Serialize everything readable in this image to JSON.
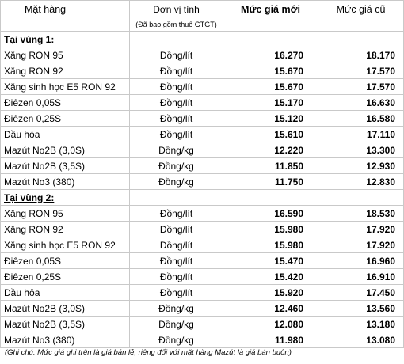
{
  "header": {
    "item": "Mặt hàng",
    "unit": "Đơn vị tính",
    "unit_note": "(Đã bao gồm thuế GTGT)",
    "new_price": "Mức giá mới",
    "old_price": "Mức giá cũ"
  },
  "regions": [
    {
      "label": "Tại vùng 1:",
      "rows": [
        {
          "item": "Xăng RON 95",
          "unit": "Đồng/lít",
          "new": "16.270",
          "old": "18.170"
        },
        {
          "item": "Xăng RON 92",
          "unit": "Đồng/lít",
          "new": "15.670",
          "old": "17.570"
        },
        {
          "item": "Xăng sinh học E5 RON 92",
          "unit": "Đồng/lít",
          "new": "15.670",
          "old": "17.570"
        },
        {
          "item": "Điêzen 0,05S",
          "unit": "Đồng/lít",
          "new": "15.170",
          "old": "16.630"
        },
        {
          "item": "Điêzen 0,25S",
          "unit": "Đồng/lít",
          "new": "15.120",
          "old": "16.580"
        },
        {
          "item": "Dầu hỏa",
          "unit": "Đồng/lít",
          "new": "15.610",
          "old": "17.110"
        },
        {
          "item": "Mazút No2B (3,0S)",
          "unit": "Đồng/kg",
          "new": "12.220",
          "old": "13.300"
        },
        {
          "item": "Mazút No2B (3,5S)",
          "unit": "Đồng/kg",
          "new": "11.850",
          "old": "12.930"
        },
        {
          "item": "Mazút No3 (380)",
          "unit": "Đồng/kg",
          "new": "11.750",
          "old": "12.830"
        }
      ]
    },
    {
      "label": "Tại vùng 2:",
      "rows": [
        {
          "item": "Xăng RON 95",
          "unit": "Đồng/lít",
          "new": "16.590",
          "old": "18.530"
        },
        {
          "item": "Xăng RON 92",
          "unit": "Đồng/lít",
          "new": "15.980",
          "old": "17.920"
        },
        {
          "item": "Xăng sinh học E5 RON 92",
          "unit": "Đồng/lít",
          "new": "15.980",
          "old": "17.920"
        },
        {
          "item": "Điêzen 0,05S",
          "unit": "Đồng/lít",
          "new": "15.470",
          "old": "16.960"
        },
        {
          "item": "Điêzen 0,25S",
          "unit": "Đồng/lít",
          "new": "15.420",
          "old": "16.910"
        },
        {
          "item": "Dầu hỏa",
          "unit": "Đồng/lít",
          "new": "15.920",
          "old": "17.450"
        },
        {
          "item": "Mazút No2B (3,0S)",
          "unit": "Đồng/kg",
          "new": "12.460",
          "old": "13.560"
        },
        {
          "item": "Mazút No2B (3,5S)",
          "unit": "Đồng/kg",
          "new": "12.080",
          "old": "13.180"
        },
        {
          "item": "Mazút No3 (380)",
          "unit": "Đồng/kg",
          "new": "11.980",
          "old": "13.080"
        }
      ]
    }
  ],
  "footnote": "(Ghi chú: Mức giá ghi trên là giá bán lẻ, riêng đối với mặt hàng Mazút là giá bán buôn)"
}
